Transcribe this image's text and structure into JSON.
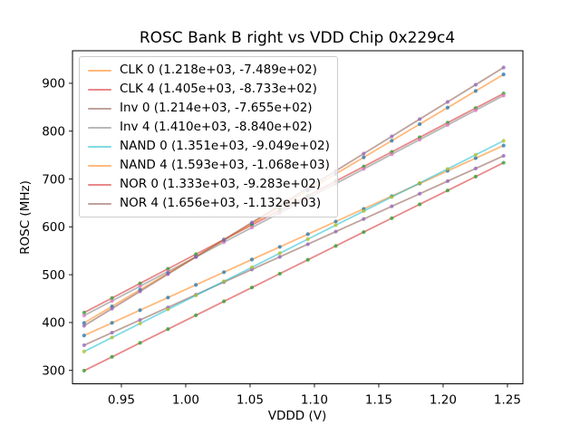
{
  "chart_data": {
    "type": "scatter",
    "title": "ROSC Bank B right vs VDD Chip 0x229c4",
    "xlabel": "VDDD (V)",
    "ylabel": "ROSC (MHz)",
    "xlim": [
      0.912,
      1.262
    ],
    "ylim": [
      272,
      968
    ],
    "grid": false,
    "legend_position": "upper left",
    "xticks": [
      {
        "value": 0.95,
        "label": "0.95"
      },
      {
        "value": 1.0,
        "label": "1.00"
      },
      {
        "value": 1.05,
        "label": "1.05"
      },
      {
        "value": 1.1,
        "label": "1.10"
      },
      {
        "value": 1.15,
        "label": "1.15"
      },
      {
        "value": 1.2,
        "label": "1.20"
      },
      {
        "value": 1.25,
        "label": "1.25"
      }
    ],
    "yticks": [
      {
        "value": 300,
        "label": "300"
      },
      {
        "value": 400,
        "label": "400"
      },
      {
        "value": 500,
        "label": "500"
      },
      {
        "value": 600,
        "label": "600"
      },
      {
        "value": 700,
        "label": "700"
      },
      {
        "value": 800,
        "label": "800"
      },
      {
        "value": 900,
        "label": "900"
      }
    ],
    "x": [
      0.921,
      0.9427,
      0.9645,
      0.9862,
      1.0079,
      1.0297,
      1.0514,
      1.0731,
      1.0949,
      1.1166,
      1.1383,
      1.1601,
      1.1818,
      1.2035,
      1.2253,
      1.247
    ],
    "line_alpha": 0.55,
    "marker_alpha": 0.75,
    "series": [
      {
        "name": "CLK 0",
        "label": "CLK 0 (1.218e+03, -7.489e+02)",
        "fit_slope": 1218,
        "fit_intercept": -748.9,
        "line_color": "#ff7f0e",
        "marker_color": "#1f77b4",
        "values": [
          372.9,
          399.3,
          425.9,
          452.3,
          478.7,
          505.3,
          531.7,
          558.1,
          584.7,
          611.1,
          637.6,
          664.1,
          690.5,
          717.0,
          743.5,
          769.9
        ]
      },
      {
        "name": "CLK 4",
        "label": "CLK 4 (1.405e+03, -8.733e+02)",
        "fit_slope": 1405,
        "fit_intercept": -873.3,
        "line_color": "#d62728",
        "marker_color": "#2ca02c",
        "values": [
          420.7,
          451.2,
          481.8,
          512.3,
          542.8,
          573.4,
          603.9,
          634.4,
          665.0,
          695.5,
          726.0,
          756.6,
          787.1,
          817.6,
          848.2,
          878.7
        ]
      },
      {
        "name": "Inv 0",
        "label": "Inv 0 (1.214e+03, -7.655e+02)",
        "fit_slope": 1214,
        "fit_intercept": -765.5,
        "line_color": "#8c564b",
        "marker_color": "#9467bd",
        "values": [
          352.6,
          378.9,
          405.4,
          431.7,
          458.1,
          484.6,
          510.9,
          537.2,
          563.7,
          590.1,
          616.4,
          642.9,
          669.2,
          695.5,
          722.0,
          748.4
        ]
      },
      {
        "name": "Inv 4",
        "label": "Inv 4 (1.410e+03, -8.840e+02)",
        "fit_slope": 1410,
        "fit_intercept": -884.0,
        "line_color": "#7f7f7f",
        "marker_color": "#e377c2",
        "values": [
          414.6,
          445.2,
          476.0,
          506.5,
          537.1,
          567.9,
          598.5,
          629.1,
          659.8,
          690.4,
          721.0,
          751.7,
          782.3,
          812.9,
          843.7,
          874.3
        ]
      },
      {
        "name": "NAND 0",
        "label": "NAND 0 (1.351e+03, -9.049e+02)",
        "fit_slope": 1351,
        "fit_intercept": -904.9,
        "line_color": "#17becf",
        "marker_color": "#bcbd22",
        "values": [
          339.4,
          368.7,
          398.1,
          427.5,
          456.8,
          486.2,
          515.5,
          544.9,
          574.3,
          603.6,
          632.9,
          662.4,
          691.7,
          721.0,
          750.5,
          779.8
        ]
      },
      {
        "name": "NAND 4",
        "label": "NAND 4 (1.593e+03, -1.068e+03)",
        "fit_slope": 1593,
        "fit_intercept": -1068,
        "line_color": "#ff7f0e",
        "marker_color": "#1f77b4",
        "values": [
          399.2,
          433.7,
          468.5,
          503.0,
          537.6,
          572.3,
          606.9,
          641.4,
          676.2,
          710.7,
          745.3,
          780.0,
          814.6,
          849.2,
          883.9,
          918.5
        ]
      },
      {
        "name": "NOR 0",
        "label": "NOR 0 (1.333e+03, -9.283e+02)",
        "fit_slope": 1333,
        "fit_intercept": -928.3,
        "line_color": "#d62728",
        "marker_color": "#2ca02c",
        "values": [
          299.4,
          328.3,
          357.4,
          386.3,
          415.2,
          444.3,
          473.2,
          502.1,
          531.2,
          560.1,
          589.1,
          618.1,
          647.0,
          676.0,
          705.0,
          734.0
        ]
      },
      {
        "name": "NOR 4",
        "label": "NOR 4 (1.656e+03, -1.132e+03)",
        "fit_slope": 1656,
        "fit_intercept": -1132,
        "line_color": "#8c564b",
        "marker_color": "#9467bd",
        "values": [
          393.2,
          429.1,
          465.2,
          501.1,
          537.1,
          573.2,
          609.1,
          645.1,
          681.2,
          717.1,
          753.0,
          789.1,
          825.1,
          861.0,
          897.1,
          933.0
        ]
      }
    ]
  }
}
